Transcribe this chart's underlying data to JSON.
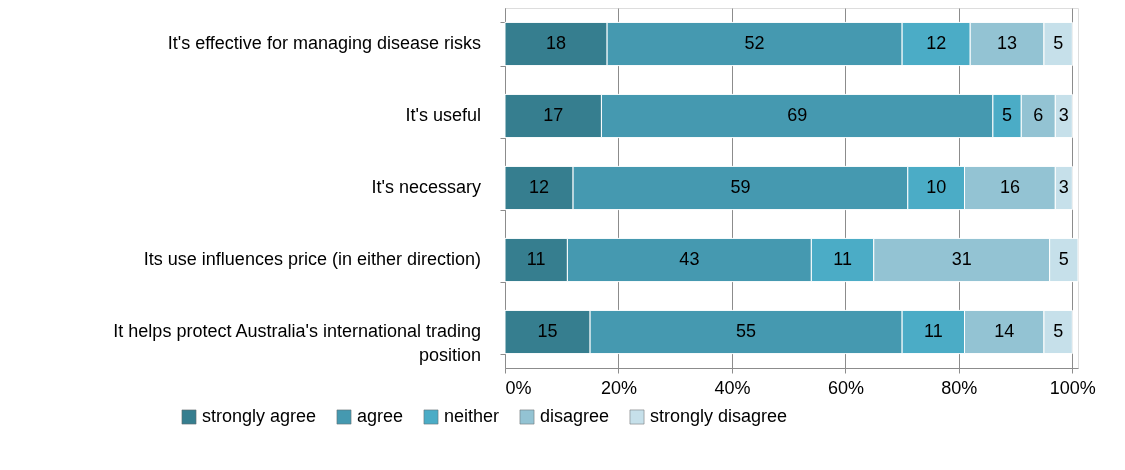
{
  "chart_data": {
    "type": "bar",
    "orientation": "horizontal",
    "stacked": true,
    "data_labels": true,
    "grid": "x",
    "legend": "bottom",
    "categories": [
      "It's effective for managing disease risks",
      "It's useful",
      "It's necessary",
      "Its use influences price (in either direction)",
      "It helps protect Australia's international trading position"
    ],
    "series": [
      {
        "name": "strongly agree",
        "color": "#367e8f",
        "values": [
          18,
          17,
          12,
          11,
          15
        ]
      },
      {
        "name": "agree",
        "color": "#4599b0",
        "values": [
          52,
          69,
          59,
          43,
          55
        ]
      },
      {
        "name": "neither",
        "color": "#4bacc6",
        "values": [
          12,
          5,
          10,
          11,
          11
        ]
      },
      {
        "name": "disagree",
        "color": "#93c3d3",
        "values": [
          13,
          6,
          16,
          31,
          14
        ]
      },
      {
        "name": "strongly disagree",
        "color": "#c6e0ea",
        "values": [
          5,
          3,
          3,
          5,
          5
        ]
      }
    ],
    "xlim": [
      0,
      101
    ],
    "xticks": [
      {
        "value": 0,
        "label": "0%"
      },
      {
        "value": 20,
        "label": "20%"
      },
      {
        "value": 40,
        "label": "40%"
      },
      {
        "value": 60,
        "label": "60%"
      },
      {
        "value": 80,
        "label": "80%"
      },
      {
        "value": 100,
        "label": "100%"
      }
    ]
  }
}
